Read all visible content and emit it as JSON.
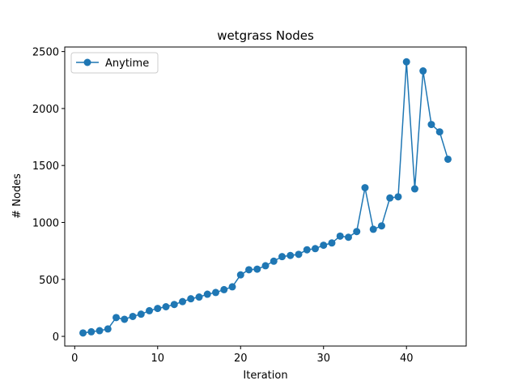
{
  "chart_data": {
    "type": "line",
    "title": "wetgrass Nodes",
    "xlabel": "Iteration",
    "ylabel": "# Nodes",
    "xlim": [
      -1.2,
      47.2
    ],
    "ylim": [
      -85,
      2540
    ],
    "xticks": [
      0,
      10,
      20,
      30,
      40
    ],
    "yticks": [
      0,
      500,
      1000,
      1500,
      2000,
      2500
    ],
    "legend": {
      "placement": "top-left"
    },
    "grid": false,
    "series": [
      {
        "name": "Anytime",
        "color": "#1f77b4",
        "marker": "circle",
        "x": [
          1,
          2,
          3,
          4,
          5,
          6,
          7,
          8,
          9,
          10,
          11,
          12,
          13,
          14,
          15,
          16,
          17,
          18,
          19,
          20,
          21,
          22,
          23,
          24,
          25,
          26,
          27,
          28,
          29,
          30,
          31,
          32,
          33,
          34,
          35,
          36,
          37,
          38,
          39,
          40,
          41,
          42,
          43,
          44,
          45
        ],
        "y": [
          30,
          40,
          50,
          65,
          165,
          150,
          175,
          195,
          225,
          245,
          260,
          280,
          305,
          330,
          345,
          370,
          385,
          410,
          435,
          540,
          585,
          590,
          620,
          660,
          700,
          710,
          720,
          760,
          770,
          800,
          820,
          880,
          870,
          920,
          1305,
          940,
          970,
          1215,
          1225,
          2410,
          1295,
          2330,
          1860,
          1795,
          1555
        ]
      }
    ]
  }
}
